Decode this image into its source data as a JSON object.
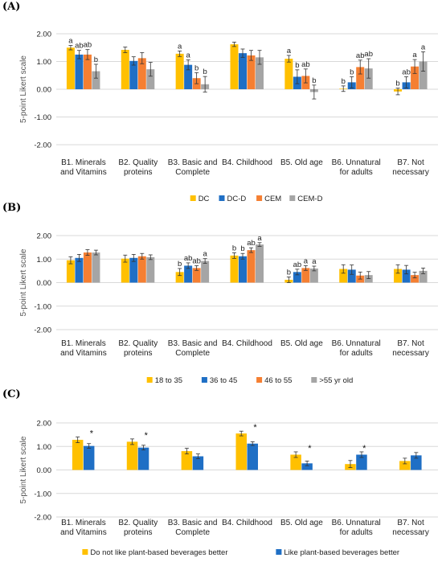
{
  "colors": {
    "series1": "#FFC000",
    "series2": "#1F6FC5",
    "series3": "#F57F32",
    "series4": "#A5A5A5",
    "grid": "#D9D9D9"
  },
  "chart_data": [
    {
      "type": "bar",
      "panel_label": "(A)",
      "ylabel": "5-point Likert scale",
      "ylim": [
        -2,
        2
      ],
      "yticks": [
        "2.00",
        "1.00",
        "0.00",
        "-1.00",
        "-2.00"
      ],
      "grid": true,
      "legend_position": "bottom",
      "categories": [
        [
          "B1. Minerals",
          "and Vitamins"
        ],
        [
          "B2. Quality",
          "proteins"
        ],
        [
          "B3. Basic and",
          "Complete"
        ],
        [
          "B4. Childhood",
          ""
        ],
        [
          "B5. Old age",
          ""
        ],
        [
          "B6. Unnatural",
          "for adults"
        ],
        [
          "B7. Not",
          "necessary"
        ]
      ],
      "series": [
        {
          "name": "DC",
          "values": [
            1.5,
            1.42,
            1.28,
            1.62,
            1.1,
            0.02,
            -0.08
          ],
          "errors": [
            0.08,
            0.1,
            0.1,
            0.08,
            0.12,
            0.1,
            0.12
          ],
          "labels": [
            "a",
            "",
            "a",
            "",
            "a",
            "b",
            "b"
          ]
        },
        {
          "name": "DC-D",
          "values": [
            1.25,
            1.02,
            0.88,
            1.3,
            0.45,
            0.25,
            0.25
          ],
          "errors": [
            0.15,
            0.15,
            0.18,
            0.15,
            0.25,
            0.2,
            0.2
          ],
          "labels": [
            "ab",
            "",
            "a",
            "",
            "b",
            "b",
            "ab"
          ]
        },
        {
          "name": "CEM",
          "values": [
            1.25,
            1.12,
            0.4,
            1.22,
            0.48,
            0.8,
            0.82
          ],
          "errors": [
            0.18,
            0.2,
            0.2,
            0.18,
            0.25,
            0.25,
            0.25
          ],
          "labels": [
            "ab",
            "",
            "b",
            "",
            "ab",
            "ab",
            "a"
          ]
        },
        {
          "name": "CEM-D",
          "values": [
            0.65,
            0.72,
            0.18,
            1.15,
            -0.1,
            0.75,
            1.0
          ],
          "errors": [
            0.25,
            0.25,
            0.28,
            0.25,
            0.25,
            0.35,
            0.35
          ],
          "labels": [
            "b",
            "",
            "b",
            "",
            "b",
            "ab",
            "a"
          ]
        }
      ]
    },
    {
      "type": "bar",
      "panel_label": "(B)",
      "ylabel": "5-point Likert scale",
      "ylim": [
        -2,
        2
      ],
      "yticks": [
        "2.00",
        "1.00",
        "0.00",
        "-1.00",
        "-2.00"
      ],
      "grid": true,
      "legend_position": "bottom",
      "categories": [
        [
          "B1. Minerals",
          "and Vitamins"
        ],
        [
          "B2. Quality",
          "proteins"
        ],
        [
          "B3. Basic and",
          "Complete"
        ],
        [
          "B4. Childhood",
          ""
        ],
        [
          "B5. Old age",
          ""
        ],
        [
          "B6. Unnatural",
          "for adults"
        ],
        [
          "B7. Not",
          "necessary"
        ]
      ],
      "series": [
        {
          "name": "18 to 35",
          "values": [
            0.95,
            1.02,
            0.45,
            1.15,
            0.12,
            0.58,
            0.58
          ],
          "errors": [
            0.15,
            0.15,
            0.15,
            0.12,
            0.12,
            0.18,
            0.18
          ],
          "labels": [
            "",
            "",
            "b",
            "b",
            "b",
            "",
            ""
          ]
        },
        {
          "name": "36 to 45",
          "values": [
            1.05,
            1.05,
            0.72,
            1.12,
            0.45,
            0.55,
            0.55
          ],
          "errors": [
            0.15,
            0.15,
            0.12,
            0.12,
            0.12,
            0.2,
            0.18
          ],
          "labels": [
            "",
            "",
            "ab",
            "b",
            "ab",
            "",
            ""
          ]
        },
        {
          "name": "46 to 55",
          "values": [
            1.28,
            1.12,
            0.62,
            1.38,
            0.62,
            0.3,
            0.32
          ],
          "errors": [
            0.12,
            0.12,
            0.1,
            0.1,
            0.1,
            0.15,
            0.12
          ],
          "labels": [
            "",
            "",
            "ab",
            "ab",
            "a",
            "",
            ""
          ]
        },
        {
          "name": ">55 yr old",
          "values": [
            1.28,
            1.08,
            0.92,
            1.62,
            0.6,
            0.32,
            0.5
          ],
          "errors": [
            0.1,
            0.1,
            0.1,
            0.08,
            0.1,
            0.15,
            0.12
          ],
          "labels": [
            "",
            "",
            "a",
            "a",
            "a",
            "",
            ""
          ]
        }
      ]
    },
    {
      "type": "bar",
      "panel_label": "(C)",
      "ylabel": "5-point Likert scale",
      "ylim": [
        -2,
        2
      ],
      "yticks": [
        "2.00",
        "1.00",
        "0.00",
        "-1.00",
        "-2.00"
      ],
      "grid": true,
      "legend_position": "bottom",
      "categories": [
        [
          "B1. Minerals",
          "and Vitamins"
        ],
        [
          "B2. Quality",
          "proteins"
        ],
        [
          "B3. Basic and",
          "Complete"
        ],
        [
          "B4. Childhood",
          ""
        ],
        [
          "B5. Old age",
          ""
        ],
        [
          "B6. Unnatural",
          "for adults"
        ],
        [
          "B7. Not",
          "necessary"
        ]
      ],
      "significance": [
        "*",
        "*",
        "",
        "*",
        "*",
        "*",
        ""
      ],
      "series": [
        {
          "name": "Do not like plant-based beverages better",
          "values": [
            1.28,
            1.2,
            0.8,
            1.55,
            0.65,
            0.25,
            0.38
          ],
          "errors": [
            0.12,
            0.12,
            0.12,
            0.1,
            0.12,
            0.15,
            0.12
          ]
        },
        {
          "name": "Like plant-based beverages better",
          "values": [
            1.02,
            0.95,
            0.58,
            1.12,
            0.28,
            0.65,
            0.62
          ],
          "errors": [
            0.1,
            0.1,
            0.1,
            0.08,
            0.1,
            0.12,
            0.12
          ]
        }
      ]
    }
  ]
}
